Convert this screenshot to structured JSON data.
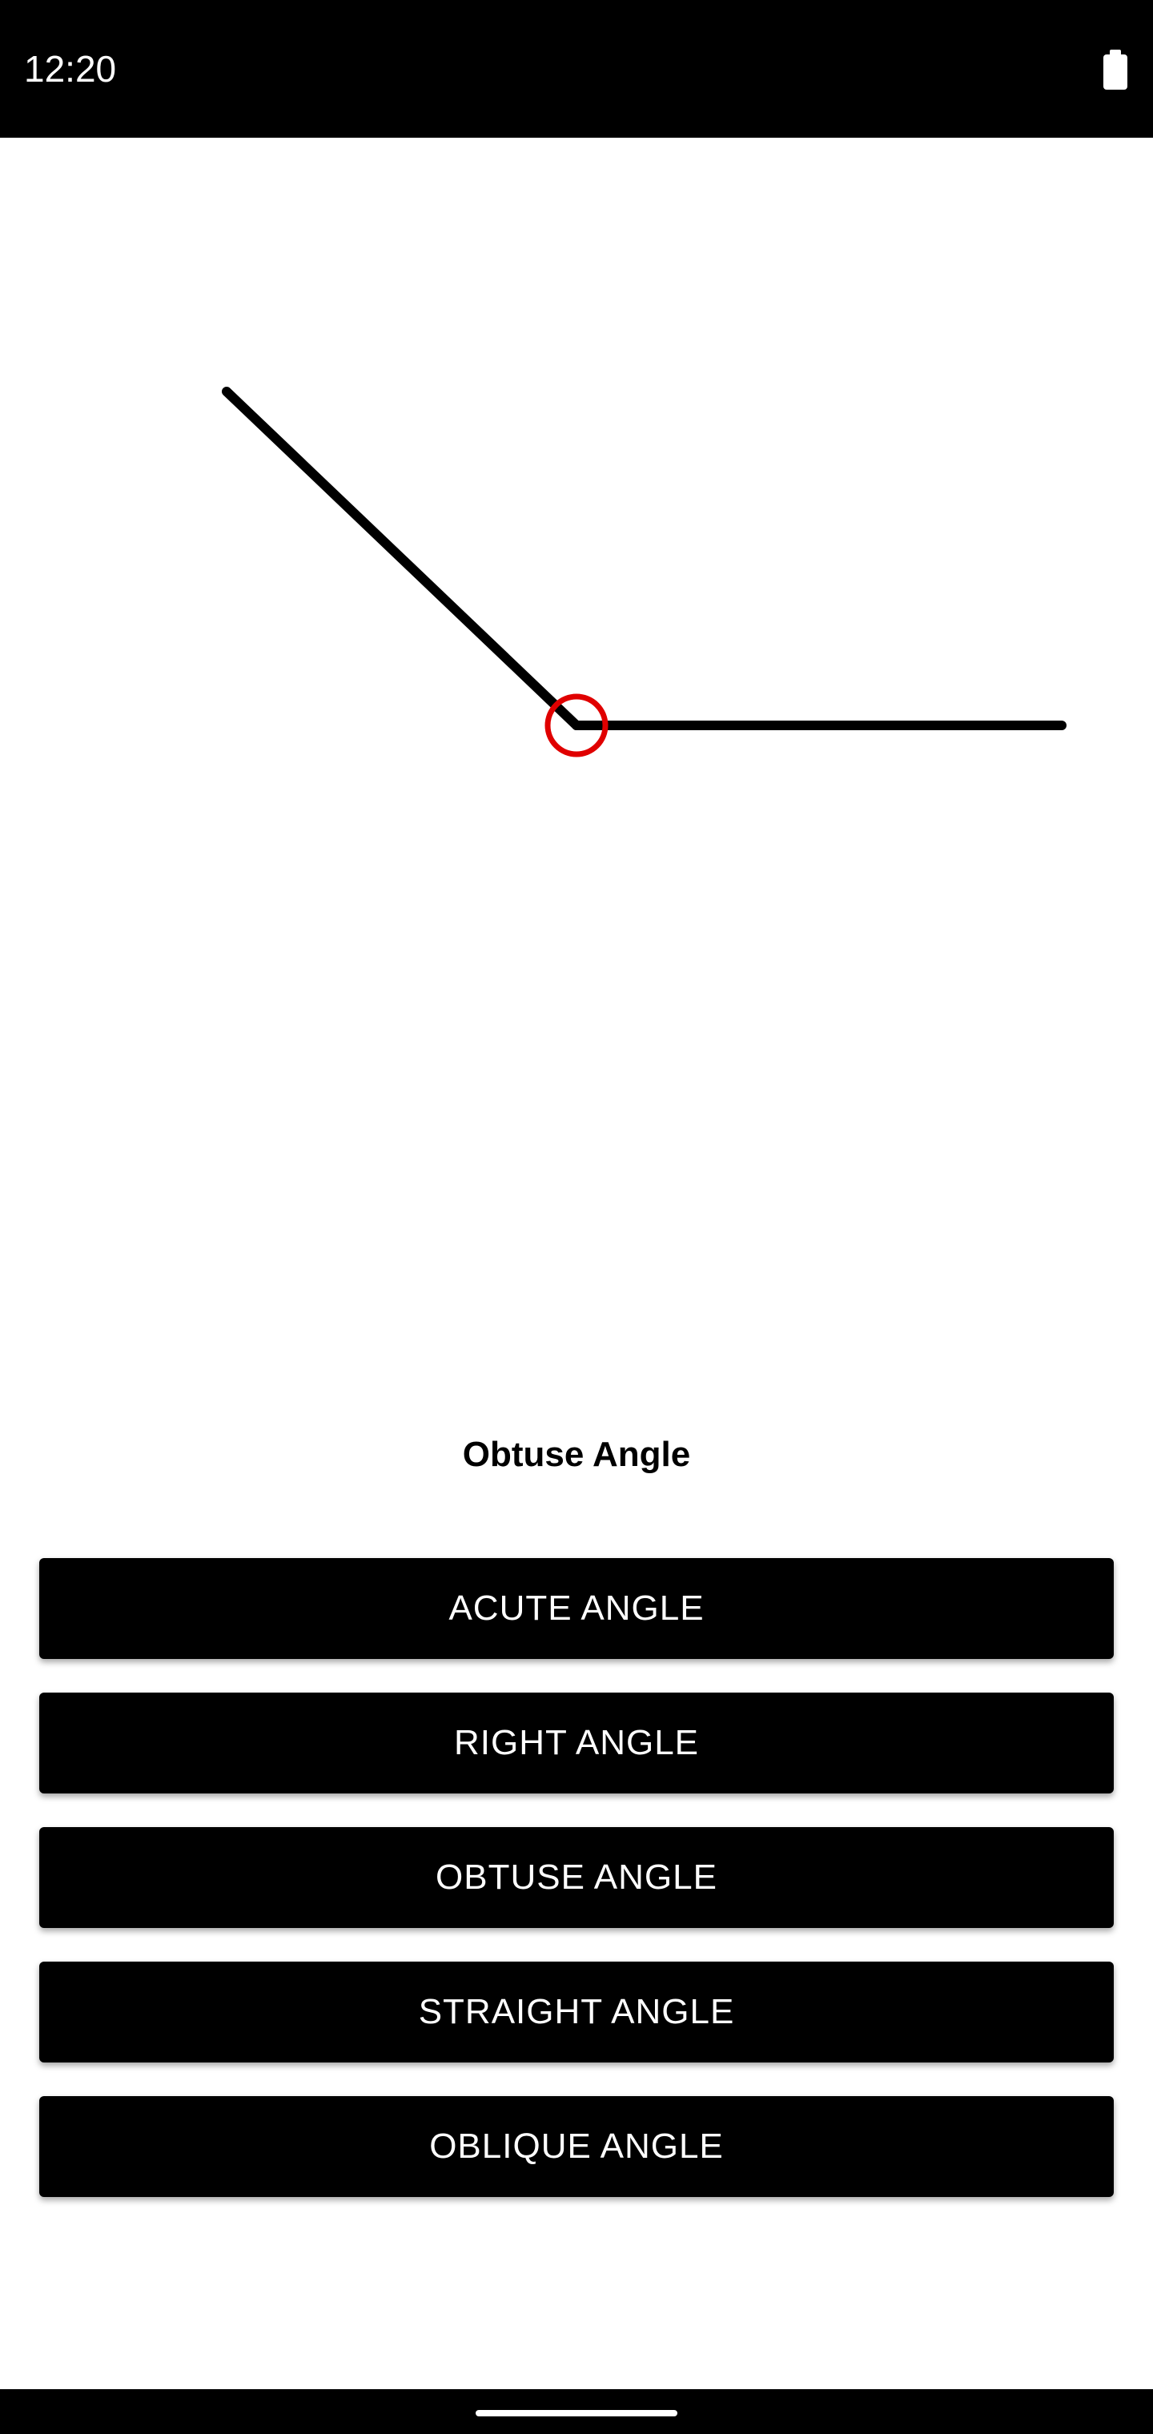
{
  "status_bar": {
    "time": "12:20",
    "battery_icon": "battery-full-icon"
  },
  "figure": {
    "angle_type": "obtuse",
    "angle_degrees": 137,
    "vertex_marker_color": "#e00000",
    "line_color": "#000000"
  },
  "label": {
    "text": "Obtuse Angle"
  },
  "buttons": [
    {
      "label": "ACUTE ANGLE"
    },
    {
      "label": "RIGHT ANGLE"
    },
    {
      "label": "OBTUSE ANGLE"
    },
    {
      "label": "STRAIGHT ANGLE"
    },
    {
      "label": "OBLIQUE ANGLE"
    }
  ],
  "colors": {
    "button_bg": "#000000",
    "button_text": "#ffffff"
  }
}
